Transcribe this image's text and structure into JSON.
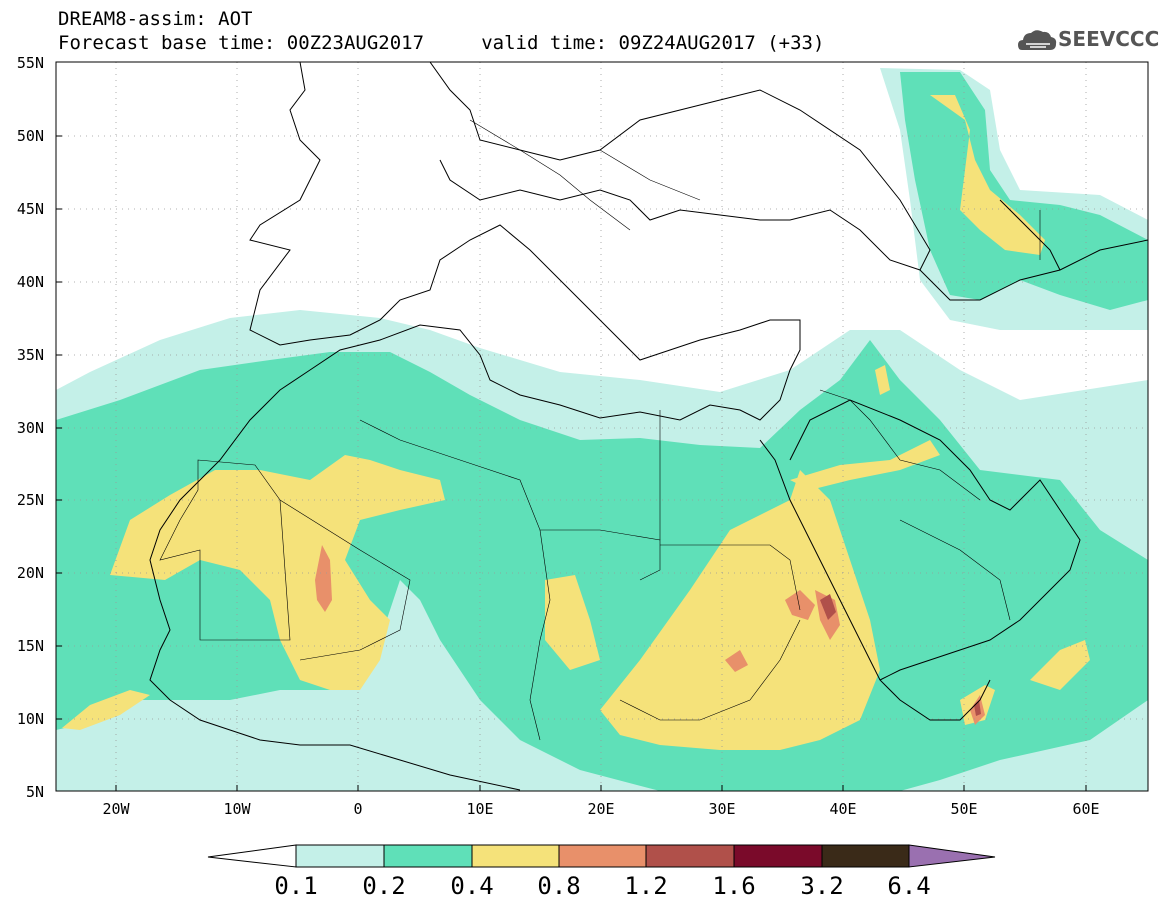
{
  "title": {
    "line1": "DREAM8-assim: AOT",
    "line2": "Forecast base time: 00Z23AUG2017     valid time: 09Z24AUG2017 (+33)"
  },
  "logo": {
    "text": "SEEVCCC",
    "icon": "cloud-icon",
    "color": "#555555"
  },
  "map": {
    "lon_range": [
      -25,
      65
    ],
    "lat_range": [
      5,
      55
    ],
    "lat_labels": [
      "55N",
      "50N",
      "45N",
      "40N",
      "35N",
      "30N",
      "25N",
      "20N",
      "15N",
      "10N",
      "5N"
    ],
    "lon_labels": [
      "20W",
      "10W",
      "0",
      "10E",
      "20E",
      "30E",
      "40E",
      "50E",
      "60E"
    ],
    "field": "AOT"
  },
  "colorbar": {
    "labels": [
      "0.1",
      "0.2",
      "0.4",
      "0.8",
      "1.2",
      "1.6",
      "3.2",
      "6.4"
    ],
    "colors": [
      "#ffffff",
      "#c4f0e8",
      "#5fe0b8",
      "#f5e27a",
      "#e8906a",
      "#b0504a",
      "#7a0a2a",
      "#3a2a18",
      "#9a70b0"
    ]
  }
}
